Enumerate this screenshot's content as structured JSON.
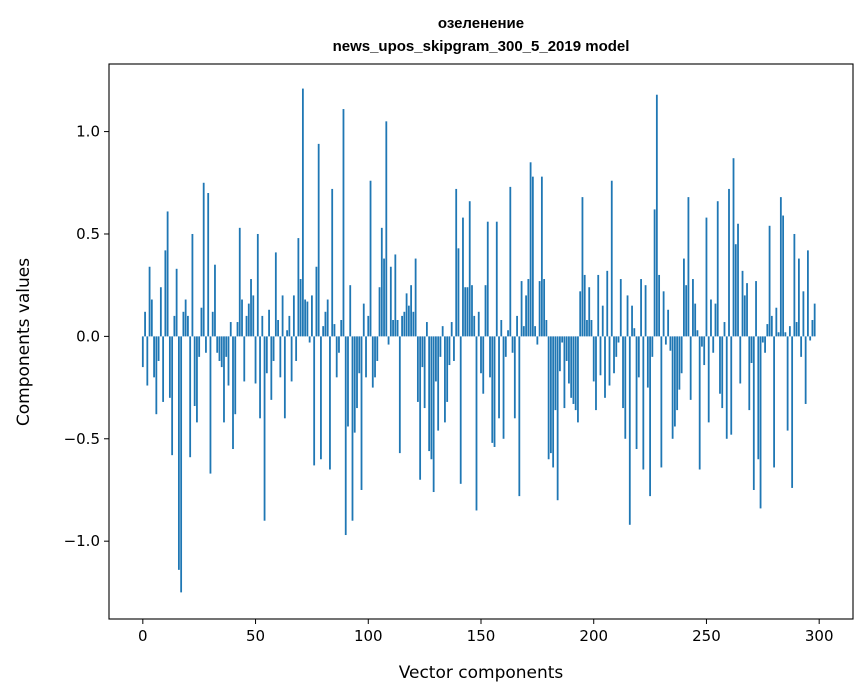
{
  "chart_data": {
    "type": "bar",
    "title": "озеленение",
    "subtitle": "news_upos_skipgram_300_5_2019 model",
    "xlabel": "Vector components",
    "ylabel": "Components values",
    "xlim": [
      -15,
      315
    ],
    "ylim": [
      -1.38,
      1.33
    ],
    "xticks": [
      0,
      50,
      100,
      150,
      200,
      250,
      300
    ],
    "xtick_labels": [
      "0",
      "50",
      "100",
      "150",
      "200",
      "250",
      "300"
    ],
    "yticks": [
      -1.0,
      -0.5,
      0.0,
      0.5,
      1.0
    ],
    "ytick_labels": [
      "−1.0",
      "−0.5",
      "0.0",
      "0.5",
      "1.0"
    ],
    "grid": false,
    "bar_color": "#1f77b4",
    "values": [
      -0.15,
      0.12,
      -0.24,
      0.34,
      0.18,
      -0.2,
      -0.38,
      -0.12,
      0.24,
      -0.32,
      0.42,
      0.61,
      -0.3,
      -0.58,
      0.1,
      0.33,
      -1.14,
      -1.25,
      0.12,
      0.18,
      0.1,
      -0.59,
      0.5,
      -0.34,
      -0.42,
      -0.1,
      0.14,
      0.75,
      -0.08,
      0.7,
      -0.67,
      0.12,
      0.35,
      -0.08,
      -0.12,
      -0.15,
      -0.42,
      -0.1,
      -0.24,
      0.07,
      -0.55,
      -0.38,
      0.07,
      0.53,
      0.18,
      -0.22,
      0.1,
      0.16,
      0.28,
      0.2,
      -0.23,
      0.5,
      -0.4,
      0.1,
      -0.9,
      -0.18,
      0.13,
      -0.31,
      -0.12,
      0.41,
      0.08,
      -0.2,
      0.2,
      -0.4,
      0.03,
      0.1,
      -0.22,
      0.2,
      -0.12,
      0.48,
      0.28,
      1.21,
      0.18,
      0.17,
      -0.03,
      0.2,
      -0.63,
      0.34,
      0.94,
      -0.6,
      0.05,
      0.12,
      0.18,
      -0.65,
      0.72,
      0.06,
      -0.2,
      -0.08,
      0.08,
      1.11,
      -0.97,
      -0.44,
      0.25,
      -0.9,
      -0.47,
      -0.35,
      -0.18,
      -0.75,
      0.16,
      -0.2,
      0.1,
      0.76,
      -0.25,
      -0.2,
      -0.12,
      0.24,
      0.53,
      0.38,
      1.05,
      -0.04,
      0.34,
      0.08,
      0.4,
      0.08,
      -0.57,
      0.1,
      0.12,
      0.21,
      0.15,
      0.25,
      0.12,
      0.38,
      -0.32,
      -0.7,
      -0.15,
      -0.35,
      0.07,
      -0.56,
      -0.6,
      -0.76,
      -0.22,
      -0.46,
      -0.1,
      0.05,
      -0.42,
      -0.32,
      -0.14,
      0.07,
      -0.12,
      0.72,
      0.43,
      -0.72,
      0.58,
      0.24,
      0.24,
      0.66,
      0.25,
      0.1,
      -0.85,
      0.12,
      -0.18,
      -0.28,
      0.25,
      0.56,
      -0.2,
      -0.52,
      -0.54,
      0.56,
      -0.4,
      0.08,
      -0.5,
      -0.1,
      0.03,
      0.73,
      -0.08,
      -0.4,
      0.1,
      -0.78,
      0.27,
      0.05,
      0.2,
      0.28,
      0.85,
      0.78,
      0.05,
      -0.04,
      0.27,
      0.78,
      0.28,
      0.08,
      -0.6,
      -0.57,
      -0.64,
      -0.36,
      -0.8,
      -0.17,
      -0.03,
      -0.35,
      -0.12,
      -0.23,
      -0.3,
      -0.33,
      -0.36,
      -0.42,
      0.22,
      0.68,
      0.3,
      0.08,
      0.24,
      0.08,
      -0.22,
      -0.36,
      0.3,
      -0.19,
      0.15,
      -0.3,
      0.32,
      -0.24,
      0.76,
      -0.18,
      -0.1,
      -0.03,
      0.28,
      -0.35,
      -0.5,
      0.2,
      -0.92,
      0.15,
      0.04,
      -0.55,
      -0.2,
      0.28,
      -0.65,
      0.25,
      -0.25,
      -0.78,
      -0.1,
      0.62,
      1.18,
      0.3,
      -0.64,
      0.22,
      -0.04,
      0.13,
      -0.07,
      -0.5,
      -0.44,
      -0.36,
      -0.26,
      -0.18,
      0.38,
      0.25,
      0.68,
      -0.31,
      0.28,
      0.16,
      0.03,
      -0.65,
      -0.05,
      -0.14,
      0.58,
      -0.42,
      0.18,
      -0.08,
      0.16,
      0.66,
      -0.28,
      -0.35,
      0.07,
      -0.5,
      0.72,
      -0.48,
      0.87,
      0.45,
      0.55,
      -0.23,
      0.32,
      0.2,
      0.26,
      -0.36,
      -0.13,
      -0.75,
      0.27,
      -0.6,
      -0.84,
      -0.03,
      -0.08,
      0.06,
      0.54,
      0.1,
      -0.64,
      0.14,
      0.02,
      0.68,
      0.59,
      0.02,
      -0.46,
      0.05,
      -0.74,
      0.5,
      0.07,
      0.38,
      -0.1,
      0.22,
      -0.33,
      0.42,
      -0.02,
      0.08,
      0.16
    ]
  }
}
